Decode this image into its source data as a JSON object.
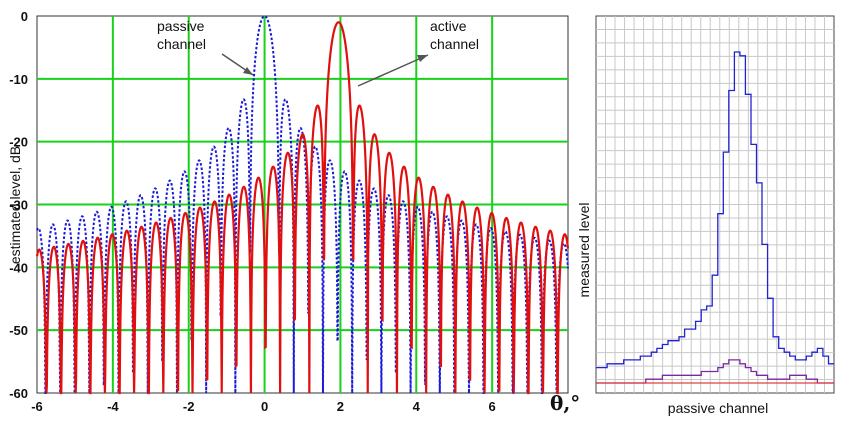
{
  "chart_data": [
    {
      "type": "line",
      "title": "",
      "xlabel": "θ,°",
      "ylabel": "estimated level, dB",
      "xlim": [
        -6,
        8
      ],
      "ylim": [
        -60,
        0
      ],
      "xticks": [
        -6,
        -4,
        -2,
        0,
        2,
        4,
        6
      ],
      "yticks": [
        0,
        -10,
        -20,
        -30,
        -40,
        -50,
        -60
      ],
      "grid": true,
      "annotations": [
        {
          "lines": [
            "passive",
            "channel"
          ],
          "series": "passive"
        },
        {
          "lines": [
            "active",
            "channel"
          ],
          "series": "active"
        }
      ],
      "series": [
        {
          "name": "passive",
          "color": "#1a1ad8",
          "style": "dotted",
          "center": 0,
          "spacing": 0.385,
          "mainlobe_db": 0
        },
        {
          "name": "active",
          "color": "#e01010",
          "style": "solid",
          "center": 1.95,
          "spacing": 0.385,
          "mainlobe_db": -1
        }
      ]
    },
    {
      "type": "line",
      "title": "",
      "xlabel": "passive channel",
      "ylabel": "measured level",
      "grid": true,
      "series": [
        {
          "color": "#2222d0",
          "values": [
            0.04,
            0.04,
            0.05,
            0.05,
            0.05,
            0.06,
            0.06,
            0.06,
            0.07,
            0.07,
            0.08,
            0.09,
            0.1,
            0.11,
            0.11,
            0.12,
            0.14,
            0.14,
            0.16,
            0.19,
            0.2,
            0.28,
            0.44,
            0.6,
            0.76,
            0.86,
            0.85,
            0.75,
            0.62,
            0.52,
            0.36,
            0.22,
            0.12,
            0.09,
            0.08,
            0.07,
            0.06,
            0.06,
            0.07,
            0.08,
            0.09,
            0.07,
            0.05
          ]
        },
        {
          "color": "#7a2aa0",
          "values": [
            0.0,
            0.0,
            0.0,
            0.0,
            0.0,
            0.0,
            0.0,
            0.0,
            0.0,
            0.01,
            0.01,
            0.01,
            0.02,
            0.02,
            0.02,
            0.02,
            0.02,
            0.02,
            0.02,
            0.03,
            0.03,
            0.03,
            0.04,
            0.05,
            0.06,
            0.06,
            0.05,
            0.04,
            0.03,
            0.02,
            0.02,
            0.01,
            0.01,
            0.01,
            0.01,
            0.02,
            0.02,
            0.02,
            0.01,
            0.01,
            0.0,
            0.0,
            0.0
          ]
        },
        {
          "color": "#e04040",
          "values": [
            0,
            0,
            0,
            0,
            0,
            0,
            0,
            0,
            0,
            0,
            0,
            0,
            0,
            0,
            0,
            0,
            0,
            0,
            0,
            0,
            0,
            0,
            0,
            0,
            0,
            0,
            0,
            0,
            0,
            0,
            0,
            0,
            0,
            0,
            0,
            0,
            0,
            0,
            0,
            0,
            0,
            0,
            0
          ]
        }
      ]
    }
  ]
}
